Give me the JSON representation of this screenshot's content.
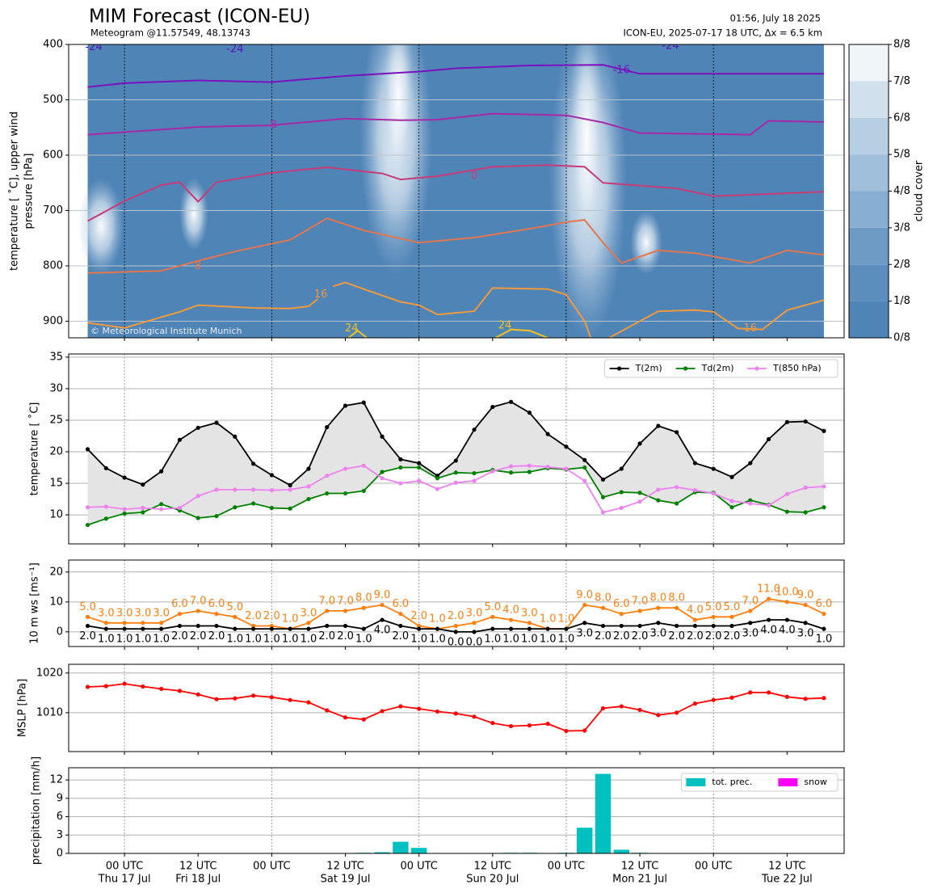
{
  "chart_data": [
    {
      "type": "contour",
      "title": "MIM Forecast (ICON-EU)",
      "subtitle": "Meteogram @11.57549, 48.13743",
      "info": [
        "01:56, July 18 2025",
        "ICON-EU, 2025-07-17 18 UTC, Δx = 6.5 km"
      ],
      "credit": "© Meteorological Institute Munich",
      "ylabel": [
        "temperature [ ˚C], upper wind",
        "pressure [hPa]"
      ],
      "xlim": [
        -9.1,
        117.3
      ],
      "x": [
        -6,
        114
      ],
      "ylim": [
        400,
        930
      ],
      "y_inverted": true,
      "yticks": [
        400,
        500,
        600,
        700,
        800,
        900
      ],
      "grid": true,
      "field_color": "#4f84b7",
      "series": [
        {
          "name": "-16",
          "color": "#7a10c0",
          "x": [
            -6,
            0,
            12,
            24,
            36,
            48,
            54,
            66,
            78,
            84,
            114
          ],
          "values": [
            477,
            470,
            465,
            468,
            457,
            449,
            443,
            438,
            437,
            453,
            453
          ]
        },
        {
          "name": "-8",
          "color": "#a828a8",
          "x": [
            -6,
            12,
            24,
            36,
            45,
            51,
            60,
            72,
            78,
            84,
            102,
            105,
            114
          ],
          "values": [
            563,
            549,
            546,
            534,
            537,
            536,
            525,
            528,
            541,
            560,
            563,
            538,
            540
          ]
        },
        {
          "name": "0",
          "color": "#c83a78",
          "x": [
            -6,
            0,
            6,
            9,
            12,
            15,
            24,
            33,
            42,
            45,
            51,
            60,
            69,
            75,
            78,
            90,
            96,
            114
          ],
          "values": [
            719,
            683,
            654,
            649,
            684,
            649,
            632,
            622,
            633,
            644,
            638,
            621,
            618,
            621,
            650,
            660,
            674,
            666
          ]
        },
        {
          "name": "8",
          "color": "#e2764e",
          "x": [
            -6,
            6,
            12,
            18,
            27,
            33,
            39,
            48,
            57,
            66,
            72,
            75,
            78,
            81,
            87,
            93,
            102,
            108,
            114
          ],
          "values": [
            813,
            809,
            791,
            774,
            753,
            714,
            736,
            758,
            749,
            733,
            721,
            717,
            758,
            795,
            772,
            777,
            795,
            772,
            780
          ]
        },
        {
          "name": "16",
          "color": "#f09a3e",
          "x": [
            -6,
            0,
            9,
            12,
            21,
            27,
            30,
            31.5,
            32.5,
            34,
            36,
            39,
            45,
            48,
            51,
            57,
            60,
            69,
            72,
            75,
            76,
            77.5,
            79,
            87,
            93,
            96,
            100,
            104,
            108,
            114
          ],
          "values": [
            903,
            912,
            883,
            871,
            876,
            877,
            873,
            860,
            null,
            837,
            830,
            842,
            865,
            871,
            888,
            882,
            840,
            842,
            852,
            900,
            930,
            null,
            930,
            882,
            880,
            883,
            913,
            915,
            880,
            862
          ]
        },
        {
          "name": "24",
          "color": "#f2c21e",
          "x": [
            36.5,
            38,
            39.5,
            40,
            60.5,
            63,
            66,
            69
          ],
          "values": [
            930,
            917,
            930,
            null,
            930,
            915,
            917,
            930
          ]
        }
      ],
      "contour_labels": [
        {
          "text": "-24",
          "x": -5,
          "p": 405,
          "color": "#5a10b8"
        },
        {
          "text": "-24",
          "x": 18,
          "p": 409,
          "color": "#5a10b8"
        },
        {
          "text": "-24",
          "x": 89,
          "p": 403,
          "color": "#5a10b8"
        },
        {
          "text": "-16",
          "x": 81,
          "p": 447,
          "color": "#7a10c0"
        },
        {
          "text": "-8",
          "x": 24,
          "p": 546,
          "color": "#a828a8"
        },
        {
          "text": "0",
          "x": 57,
          "p": 638,
          "color": "#c83a78"
        },
        {
          "text": "8",
          "x": 12,
          "p": 801,
          "color": "#e2764e"
        },
        {
          "text": "16",
          "x": 32,
          "p": 852,
          "color": "#f09a3e"
        },
        {
          "text": "16",
          "x": 102,
          "p": 913,
          "color": "#f09a3e"
        },
        {
          "text": "24",
          "x": 37,
          "p": 913,
          "color": "#f2c21e"
        },
        {
          "text": "24",
          "x": 62,
          "p": 908,
          "color": "#f2c21e"
        }
      ],
      "colorbar": {
        "label": "cloud cover",
        "lim": [
          0,
          8
        ],
        "ticks": [
          {
            "value": 0,
            "label": "0/8"
          },
          {
            "value": 1,
            "label": "1/8"
          },
          {
            "value": 2,
            "label": "2/8"
          },
          {
            "value": 3,
            "label": "3/8"
          },
          {
            "value": 4,
            "label": "4/8"
          },
          {
            "value": 5,
            "label": "5/8"
          },
          {
            "value": 6,
            "label": "6/8"
          },
          {
            "value": 7,
            "label": "7/8"
          },
          {
            "value": 8,
            "label": "8/8"
          }
        ],
        "colors": [
          "#4f84b7",
          "#5b8dbd",
          "#6e9bc6",
          "#88aed1",
          "#a0bfda",
          "#b7cfe3",
          "#d1e0ed",
          "#f0f5fa"
        ]
      }
    },
    {
      "type": "line",
      "ylabel": "temperature [ ˚C]",
      "xlim": [
        -9.1,
        117.3
      ],
      "x": [
        -6,
        -3,
        0,
        3,
        6,
        9,
        12,
        15,
        18,
        21,
        24,
        27,
        30,
        33,
        36,
        39,
        42,
        45,
        48,
        51,
        54,
        57,
        60,
        63,
        66,
        69,
        72,
        75,
        78,
        81,
        84,
        87,
        90,
        93,
        96,
        99,
        102,
        105,
        108,
        111,
        114
      ],
      "ylim": [
        5.4,
        35.5
      ],
      "yticks": [
        10,
        15,
        20,
        25,
        30,
        35
      ],
      "grid": true,
      "legend": "upper right",
      "fill_color": "#e4e4e4",
      "series": [
        {
          "name": "T(2m)",
          "color": "#000000",
          "values": [
            20.4,
            17.4,
            15.9,
            14.8,
            16.9,
            21.9,
            23.8,
            24.6,
            22.4,
            18.1,
            16.3,
            14.7,
            17.3,
            23.9,
            27.3,
            27.8,
            22.4,
            18.8,
            18.2,
            16.2,
            18.6,
            23.5,
            27.1,
            27.9,
            26.2,
            22.8,
            20.8,
            18.7,
            15.6,
            17.3,
            21.3,
            24.1,
            23.1,
            18.2,
            17.3,
            16.0,
            18.2,
            22.0,
            24.7,
            24.8,
            23.3
          ]
        },
        {
          "name": "Td(2m)",
          "color": "#008000",
          "values": [
            8.4,
            9.4,
            10.2,
            10.4,
            11.7,
            10.7,
            9.5,
            9.8,
            11.2,
            11.8,
            11.1,
            11.0,
            12.5,
            13.4,
            13.4,
            13.8,
            16.8,
            17.5,
            17.5,
            15.8,
            16.7,
            16.6,
            17.1,
            16.7,
            16.8,
            17.4,
            17.2,
            17.5,
            12.8,
            13.6,
            13.5,
            12.3,
            11.8,
            13.6,
            13.5,
            11.2,
            12.3,
            11.6,
            10.5,
            10.4,
            11.2
          ]
        },
        {
          "name": "T(850 hPa)",
          "color": "#ee82ee",
          "values": [
            11.2,
            11.3,
            10.9,
            11.1,
            10.9,
            11.1,
            13.0,
            14.0,
            14.0,
            14.0,
            13.9,
            14.0,
            14.5,
            16.2,
            17.3,
            17.8,
            15.8,
            15.0,
            15.4,
            14.1,
            15.1,
            15.4,
            16.9,
            17.7,
            17.8,
            17.6,
            17.3,
            15.4,
            10.4,
            11.1,
            12.1,
            14.0,
            14.4,
            13.9,
            13.4,
            12.2,
            11.8,
            11.5,
            13.3,
            14.3,
            14.5
          ]
        }
      ]
    },
    {
      "type": "line",
      "ylabel": "10 m ws [ms⁻¹]",
      "xlim": [
        -9.1,
        117.3
      ],
      "x": [
        -6,
        -3,
        0,
        3,
        6,
        9,
        12,
        15,
        18,
        21,
        24,
        27,
        30,
        33,
        36,
        39,
        42,
        45,
        48,
        51,
        54,
        57,
        60,
        63,
        66,
        69,
        72,
        75,
        78,
        81,
        84,
        87,
        90,
        93,
        96,
        99,
        102,
        105,
        108,
        111,
        114
      ],
      "ylim": [
        -4.9,
        24
      ],
      "yticks": [
        0,
        10,
        20
      ],
      "grid": true,
      "series": [
        {
          "color": "#ff7f0e",
          "label_side": "above",
          "values": [
            5,
            3,
            3,
            3,
            3,
            6,
            7,
            6,
            5,
            2,
            2,
            1,
            3,
            7,
            7,
            8,
            9,
            6,
            2,
            1,
            2,
            3,
            5,
            4,
            3,
            1,
            1,
            9,
            8,
            6,
            7,
            8,
            8,
            4,
            5,
            5,
            7,
            11,
            10,
            9,
            6
          ],
          "value_labels": [
            "5.0",
            "3.0",
            "3.0",
            "3.0",
            "3.0",
            "6.0",
            "7.0",
            "6.0",
            "5.0",
            "2.0",
            "2.0",
            "1.0",
            "3.0",
            "7.0",
            "7.0",
            "8.0",
            "9.0",
            "6.0",
            "2.0",
            "1.0",
            "2.0",
            "3.0",
            "5.0",
            "4.0",
            "3.0",
            "1.0",
            "1.0",
            "9.0",
            "8.0",
            "6.0",
            "7.0",
            "8.0",
            "8.0",
            "4.0",
            "5.0",
            "5.0",
            "7.0",
            "11.0",
            "10.0",
            "9.0",
            "6.0"
          ]
        },
        {
          "color": "#000000",
          "label_side": "below",
          "values": [
            2,
            1,
            1,
            1,
            1,
            2,
            2,
            2,
            1,
            1,
            1,
            1,
            1,
            2,
            2,
            1,
            4,
            2,
            1,
            1,
            0,
            0,
            1,
            1,
            1,
            1,
            1,
            3,
            2,
            2,
            2,
            3,
            2,
            2,
            2,
            2,
            3,
            4,
            4,
            3,
            1
          ],
          "value_labels": [
            "2.0",
            "1.0",
            "1.0",
            "1.0",
            "1.0",
            "2.0",
            "2.0",
            "2.0",
            "1.0",
            "1.0",
            "1.0",
            "1.0",
            "1.0",
            "2.0",
            "2.0",
            "1.0",
            "4.0",
            "2.0",
            "1.0",
            "1.0",
            "0.0",
            "0.0",
            "1.0",
            "1.0",
            "1.0",
            "1.0",
            "1.0",
            "3.0",
            "2.0",
            "2.0",
            "2.0",
            "3.0",
            "2.0",
            "2.0",
            "2.0",
            "2.0",
            "3.0",
            "4.0",
            "4.0",
            "3.0",
            "1.0"
          ]
        }
      ]
    },
    {
      "type": "line",
      "ylabel": "MSLP [hPa]",
      "xlim": [
        -9.1,
        117.3
      ],
      "x": [
        -6,
        -3,
        0,
        3,
        6,
        9,
        12,
        15,
        18,
        21,
        24,
        27,
        30,
        33,
        36,
        39,
        42,
        45,
        48,
        51,
        54,
        57,
        60,
        63,
        66,
        69,
        72,
        75,
        78,
        81,
        84,
        87,
        90,
        93,
        96,
        99,
        102,
        105,
        108,
        111,
        114
      ],
      "ylim": [
        1000.2,
        1022.2
      ],
      "yticks": [
        1010,
        1020
      ],
      "grid": true,
      "series": [
        {
          "color": "#ff0000",
          "values": [
            1016.5,
            1016.7,
            1017.3,
            1016.6,
            1016.0,
            1015.5,
            1014.6,
            1013.4,
            1013.6,
            1014.3,
            1013.9,
            1013.2,
            1012.6,
            1010.6,
            1008.8,
            1008.3,
            1010.4,
            1011.6,
            1011.0,
            1010.3,
            1009.8,
            1009.0,
            1007.4,
            1006.6,
            1006.8,
            1007.2,
            1005.4,
            1005.5,
            1011.1,
            1011.6,
            1010.7,
            1009.4,
            1010.0,
            1012.3,
            1013.2,
            1013.8,
            1015.1,
            1015.1,
            1014.0,
            1013.5,
            1013.7
          ]
        }
      ]
    },
    {
      "type": "bar",
      "ylabel": "precipitation [mm/h]",
      "xlim": [
        -9.1,
        117.3
      ],
      "x": [
        -6,
        -3,
        0,
        3,
        6,
        9,
        12,
        15,
        18,
        21,
        24,
        27,
        30,
        33,
        36,
        39,
        42,
        45,
        48,
        51,
        54,
        57,
        60,
        63,
        66,
        69,
        72,
        75,
        78,
        81,
        84,
        87,
        90,
        93,
        96,
        99,
        102,
        105,
        108,
        111,
        114
      ],
      "ylim": [
        0,
        14
      ],
      "yticks": [
        0,
        3,
        6,
        9,
        12
      ],
      "grid": true,
      "legend": "upper right",
      "xticks": [
        {
          "value": 0,
          "label": "00 UTC"
        },
        {
          "value": 12,
          "label": "12 UTC"
        },
        {
          "value": 24,
          "label": "00 UTC"
        },
        {
          "value": 36,
          "label": "12 UTC"
        },
        {
          "value": 48,
          "label": "00 UTC"
        },
        {
          "value": 60,
          "label": "12 UTC"
        },
        {
          "value": 72,
          "label": "00 UTC"
        },
        {
          "value": 84,
          "label": "12 UTC"
        },
        {
          "value": 96,
          "label": "00 UTC"
        },
        {
          "value": 108,
          "label": "12 UTC"
        }
      ],
      "xtick_dates": [
        "Thu 17 Jul",
        "Fri 18 Jul",
        null,
        "Sat 19 Jul",
        null,
        "Sun 20 Jul",
        null,
        "Mon 21 Jul",
        null,
        "Tue 22 Jul"
      ],
      "series": [
        {
          "name": "tot. prec.",
          "color": "#00c0c0",
          "values": [
            0,
            0,
            0,
            0,
            0,
            0,
            0,
            0,
            0,
            0,
            0,
            0,
            0,
            0,
            0.05,
            0.1,
            0.2,
            1.9,
            0.9,
            0,
            0,
            0,
            0,
            0.1,
            0.1,
            0,
            0.1,
            4.2,
            13.0,
            0.6,
            0.1,
            0,
            0,
            0,
            0,
            0,
            0,
            0,
            0,
            0,
            0
          ]
        },
        {
          "name": "snow",
          "color": "#ff00ff",
          "values": [
            0,
            0,
            0,
            0,
            0,
            0,
            0,
            0,
            0,
            0,
            0,
            0,
            0,
            0,
            0,
            0,
            0,
            0,
            0,
            0,
            0,
            0,
            0,
            0,
            0,
            0,
            0,
            0,
            0,
            0,
            0,
            0,
            0,
            0,
            0,
            0,
            0,
            0,
            0,
            0,
            0
          ]
        }
      ]
    }
  ]
}
